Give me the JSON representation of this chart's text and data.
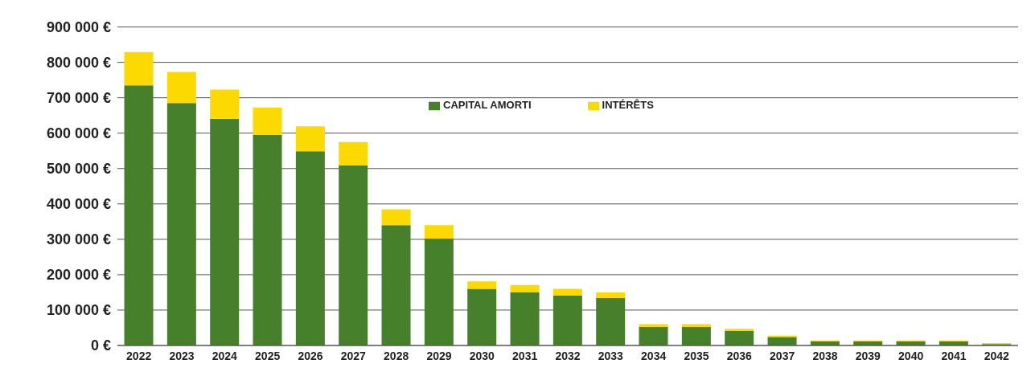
{
  "chart_data": {
    "type": "bar",
    "stacked": true,
    "categories": [
      "2022",
      "2023",
      "2024",
      "2025",
      "2026",
      "2027",
      "2028",
      "2029",
      "2030",
      "2031",
      "2032",
      "2033",
      "2034",
      "2035",
      "2036",
      "2037",
      "2038",
      "2039",
      "2040",
      "2041",
      "2042"
    ],
    "series": [
      {
        "name": "CAPITAL AMORTI",
        "color": "#47802b",
        "values": [
          735000,
          685000,
          641000,
          595000,
          549000,
          509000,
          340000,
          302000,
          160000,
          150000,
          141000,
          134000,
          52000,
          52000,
          41000,
          24000,
          12000,
          12000,
          12000,
          12000,
          4000
        ]
      },
      {
        "name": "INTÉRÊTS",
        "color": "#fcd900",
        "values": [
          94000,
          88000,
          82000,
          77000,
          70000,
          66000,
          45000,
          38000,
          21000,
          21000,
          19000,
          16000,
          8000,
          8000,
          6000,
          4000,
          2000,
          2000,
          2000,
          2000,
          3000
        ]
      }
    ],
    "ylim": [
      0,
      900000
    ],
    "yticks": [
      {
        "value": 0,
        "label": "0 €"
      },
      {
        "value": 100000,
        "label": "100 000 €"
      },
      {
        "value": 200000,
        "label": "200 000 €"
      },
      {
        "value": 300000,
        "label": "300 000 €"
      },
      {
        "value": 400000,
        "label": "400 000 €"
      },
      {
        "value": 500000,
        "label": "500 000 €"
      },
      {
        "value": 600000,
        "label": "600 000 €"
      },
      {
        "value": 700000,
        "label": "700 000 €"
      },
      {
        "value": 800000,
        "label": "800 000 €"
      },
      {
        "value": 900000,
        "label": "900 000 €"
      }
    ],
    "grid": "y",
    "legend": "top"
  }
}
